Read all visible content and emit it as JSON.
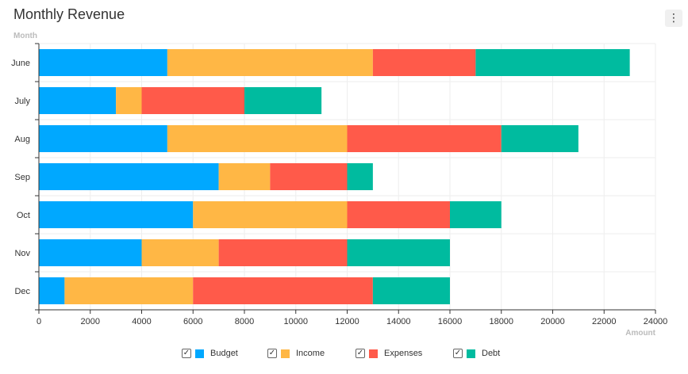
{
  "header": {
    "title": "Monthly Revenue",
    "menu_icon": "⋮"
  },
  "chart_data": {
    "type": "bar",
    "orientation": "horizontal",
    "stacked": true,
    "title": "Monthly Revenue",
    "ylabel": "Month",
    "xlabel": "Amount",
    "categories": [
      "June",
      "July",
      "Aug",
      "Sep",
      "Oct",
      "Nov",
      "Dec"
    ],
    "xlim": [
      0,
      24000
    ],
    "xticks": [
      0,
      2000,
      4000,
      6000,
      8000,
      10000,
      12000,
      14000,
      16000,
      18000,
      20000,
      22000,
      24000
    ],
    "grid": true,
    "legend_position": "bottom",
    "series": [
      {
        "name": "Budget",
        "color": "#00a8ff",
        "values": [
          5000,
          3000,
          5000,
          7000,
          6000,
          4000,
          1000
        ]
      },
      {
        "name": "Income",
        "color": "#ffb745",
        "values": [
          8000,
          1000,
          7000,
          2000,
          6000,
          3000,
          5000
        ]
      },
      {
        "name": "Expenses",
        "color": "#ff5a4a",
        "values": [
          4000,
          4000,
          6000,
          3000,
          4000,
          5000,
          7000
        ]
      },
      {
        "name": "Debt",
        "color": "#00bb9f",
        "values": [
          6000,
          3000,
          3000,
          1000,
          2000,
          4000,
          3000
        ]
      }
    ]
  },
  "legend": {
    "check_glyph": "✓",
    "items": [
      {
        "label": "Budget",
        "color": "#00a8ff",
        "checked": true
      },
      {
        "label": "Income",
        "color": "#ffb745",
        "checked": true
      },
      {
        "label": "Expenses",
        "color": "#ff5a4a",
        "checked": true
      },
      {
        "label": "Debt",
        "color": "#00bb9f",
        "checked": true
      }
    ]
  }
}
